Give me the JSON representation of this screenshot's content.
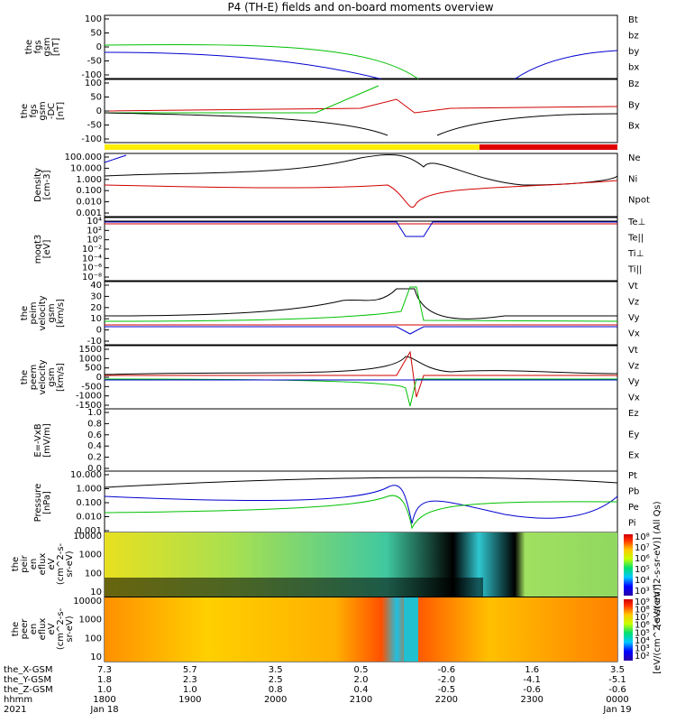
{
  "chart_data": {
    "type": "line",
    "title": "P4 (TH-E) fields and on-board moments overview",
    "panels": [
      {
        "id": "fgs_gsm",
        "ylabel": [
          "the",
          "fgs",
          "gsm",
          "[nT]"
        ],
        "yticks": [
          "100",
          "50",
          "0",
          "-50",
          "-100"
        ],
        "ylim": [
          -100,
          100
        ],
        "legend": [
          {
            "label": "Bt",
            "color": "#000000"
          },
          {
            "label": "bz",
            "color": "#d00000"
          },
          {
            "label": "by",
            "color": "#00c000"
          },
          {
            "label": "bx",
            "color": "#0000d0"
          }
        ]
      },
      {
        "id": "fgs_gsm_dc",
        "ylabel": [
          "the",
          "fgs",
          "gsm",
          "-DC",
          "[nT]"
        ],
        "yticks": [
          "100",
          "50",
          "0",
          "-50",
          "-100"
        ],
        "ylim": [
          -120,
          100
        ],
        "legend": [
          {
            "label": "Bz",
            "color": "#d00000"
          },
          {
            "label": "By",
            "color": "#00c000"
          },
          {
            "label": "Bx",
            "color": "#000000"
          }
        ]
      },
      {
        "id": "density",
        "ylabel": [
          "Density",
          "[cm-3]"
        ],
        "yticks": [
          "100.000",
          "10.000",
          "1.000",
          "0.100",
          "0.010",
          "0.001"
        ],
        "scale": "log",
        "legend": [
          {
            "label": "Ne",
            "color": "#d00000"
          },
          {
            "label": "Ni",
            "color": "#000000"
          },
          {
            "label": "Npot",
            "color": "#0000d0"
          }
        ]
      },
      {
        "id": "temperature",
        "ylabel": [
          "moqt3",
          "[eV]"
        ],
        "yticks": [
          "10⁴",
          "10²",
          "10⁰",
          "10⁻²",
          "10⁻⁴",
          "10⁻⁶",
          "10⁻⁸"
        ],
        "scale": "log",
        "legend": [
          {
            "label": "Te⊥",
            "color": "#d00000"
          },
          {
            "label": "Te||",
            "color": "#000000"
          },
          {
            "label": "Ti⊥",
            "color": "#c8b400"
          },
          {
            "label": "Ti||",
            "color": "#00c000"
          }
        ]
      },
      {
        "id": "peim_velocity",
        "ylabel": [
          "the",
          "peim",
          "velocity",
          "gsm",
          "[km/s]"
        ],
        "yticks": [
          "40",
          "30",
          "20",
          "10",
          "0",
          "-10"
        ],
        "ylim": [
          -10,
          40
        ],
        "legend": [
          {
            "label": "Vt",
            "color": "#000000"
          },
          {
            "label": "Vz",
            "color": "#d00000"
          },
          {
            "label": "Vy",
            "color": "#00c000"
          },
          {
            "label": "Vx",
            "color": "#0000d0"
          }
        ]
      },
      {
        "id": "peem_velocity",
        "ylabel": [
          "the",
          "peem",
          "velocity",
          "gsm",
          "[km/s]"
        ],
        "yticks": [
          "1500",
          "1000",
          "500",
          "0",
          "-500",
          "-1000",
          "-1500"
        ],
        "ylim": [
          -1500,
          1500
        ],
        "legend": [
          {
            "label": "Vt",
            "color": "#000000"
          },
          {
            "label": "Vz",
            "color": "#d00000"
          },
          {
            "label": "Vy",
            "color": "#00c000"
          },
          {
            "label": "Vx",
            "color": "#0000d0"
          }
        ]
      },
      {
        "id": "efield",
        "ylabel": [
          "E=-VxB",
          "[mV/m]"
        ],
        "yticks": [
          "1.0",
          "0.8",
          "0.6",
          "0.4",
          "0.2",
          "0.0"
        ],
        "ylim": [
          0,
          1
        ],
        "legend": [
          {
            "label": "Ez",
            "color": "#d00000"
          },
          {
            "label": "Ey",
            "color": "#00c000"
          },
          {
            "label": "Ex",
            "color": "#0000d0"
          }
        ]
      },
      {
        "id": "pressure",
        "ylabel": [
          "Pressure",
          "[nPa]"
        ],
        "yticks": [
          "10.000",
          "1.000",
          "0.100",
          "0.010",
          "0.001"
        ],
        "scale": "log",
        "legend": [
          {
            "label": "Pt",
            "color": "#000000"
          },
          {
            "label": "Pb",
            "color": "#d00000"
          },
          {
            "label": "Pe",
            "color": "#00c000"
          },
          {
            "label": "Pi",
            "color": "#0000d0"
          }
        ]
      },
      {
        "id": "peir_spec",
        "type": "heatmap",
        "ylabel": [
          "the",
          "peir",
          "en",
          "eflux",
          "eV",
          "(cm^2-s-",
          "sr-eV)"
        ],
        "yticks": [
          "10000",
          "1000",
          "100",
          "10"
        ],
        "colorbar": [
          "10⁸",
          "10⁷",
          "10⁶",
          "10⁵",
          "10⁴",
          "10³"
        ],
        "colorbar_label": "[eV/(cm^2-s-sr-eV)] (All Qs)"
      },
      {
        "id": "peer_spec",
        "type": "heatmap",
        "ylabel": [
          "the",
          "peer",
          "en",
          "eflux",
          "eV",
          "(cm^2-s-",
          "sr-eV)"
        ],
        "yticks": [
          "10000",
          "1000",
          "100",
          "10"
        ],
        "colorbar": [
          "10⁹",
          "10⁸",
          "10⁷",
          "10⁶",
          "10⁵",
          "10⁴",
          "10³",
          "10²"
        ],
        "colorbar_label": "[eV/(cm^2-s-sr-eV)]"
      }
    ],
    "xaxis": {
      "rows": [
        {
          "label": "the_X-GSM",
          "values": [
            "7.3",
            "5.7",
            "3.5",
            "0.5",
            "-0.6",
            "1.6",
            "3.5"
          ]
        },
        {
          "label": "the_Y-GSM",
          "values": [
            "1.8",
            "2.3",
            "2.5",
            "2.0",
            "-2.0",
            "-4.1",
            "-5.1"
          ]
        },
        {
          "label": "the_Z-GSM",
          "values": [
            "1.0",
            "1.0",
            "0.8",
            "0.4",
            "-0.5",
            "-0.6",
            "-0.6"
          ]
        },
        {
          "label": "hhmm",
          "values": [
            "1800",
            "1900",
            "2000",
            "2100",
            "2200",
            "2300",
            "0000"
          ]
        },
        {
          "label": "2021",
          "values": [
            "Jan 18",
            "",
            "",
            "",
            "",
            "",
            "Jan 19"
          ]
        }
      ]
    }
  }
}
